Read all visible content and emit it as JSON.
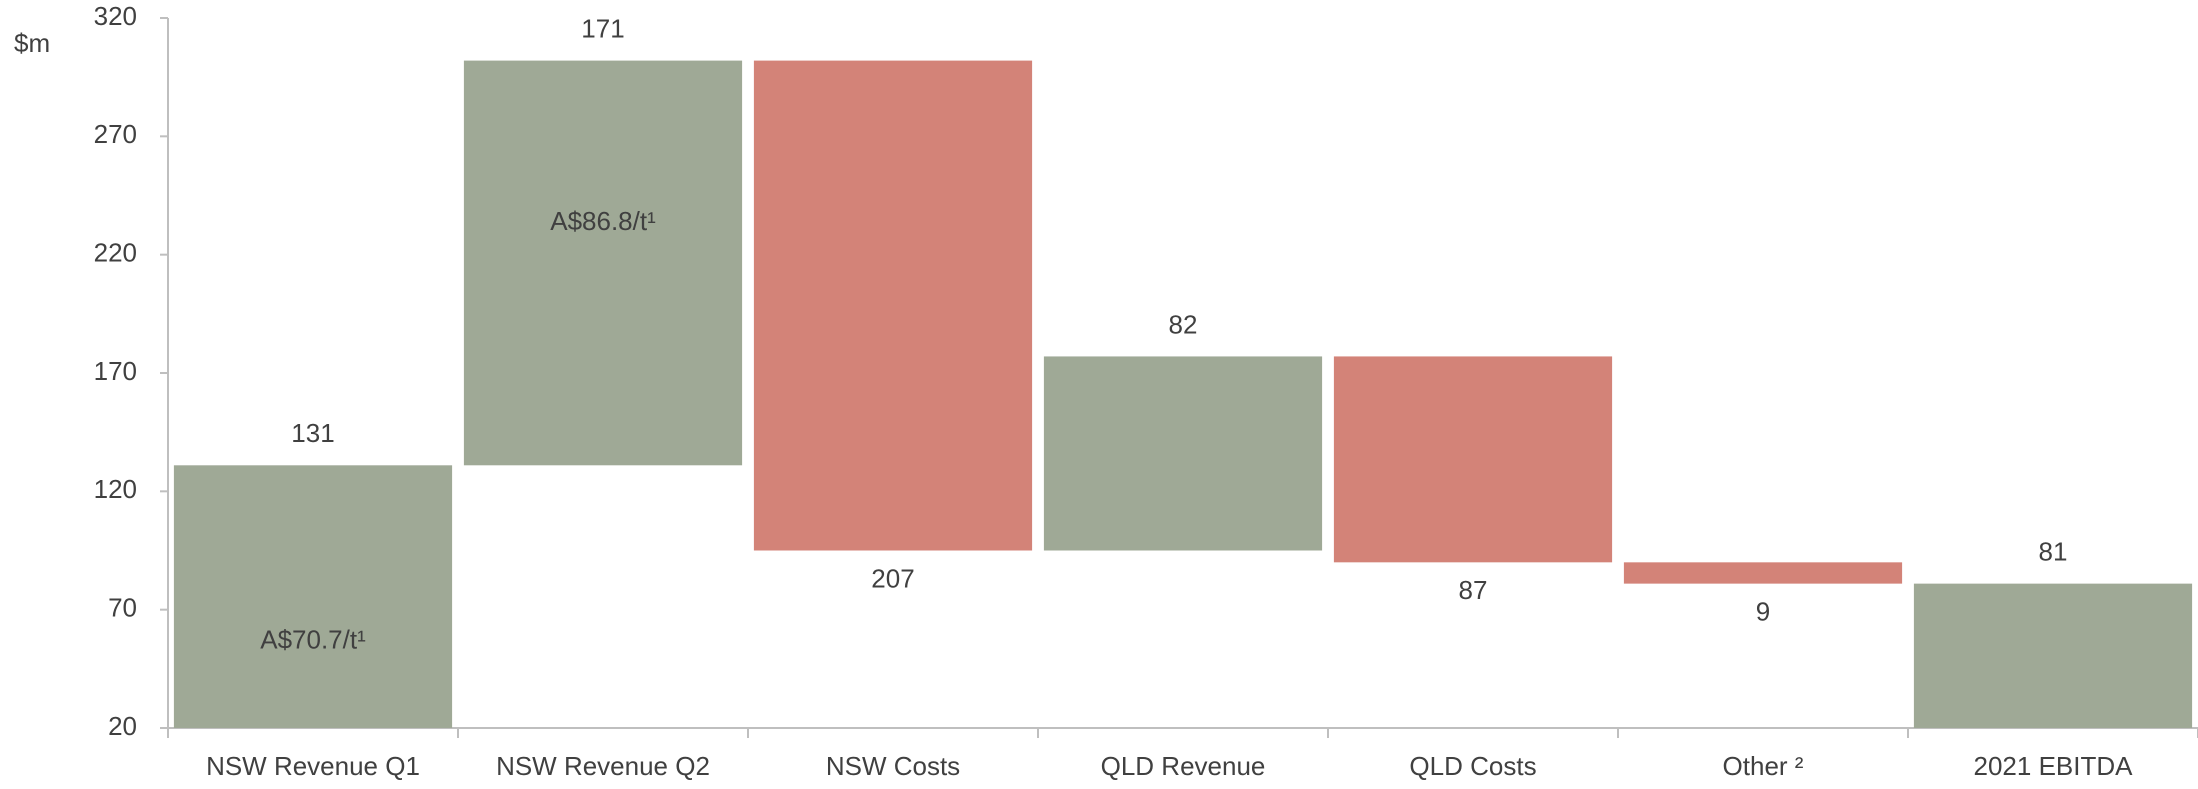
{
  "chart_data": {
    "type": "waterfall",
    "y_label": "$m",
    "categories": [
      "NSW Revenue Q1",
      "NSW Revenue Q2",
      "NSW Costs",
      "QLD Revenue",
      "QLD Costs",
      "Other ²",
      "2021 EBITDA"
    ],
    "values": [
      131,
      171,
      207,
      82,
      87,
      9,
      81
    ],
    "measure": [
      "increase",
      "increase",
      "decrease",
      "increase",
      "decrease",
      "decrease",
      "total"
    ],
    "colors": {
      "increase": "#9fa996",
      "decrease": "#d38378",
      "total": "#9fa996"
    },
    "annotations": [
      {
        "text": "A$70.7/t¹",
        "category": "NSW Revenue Q1"
      },
      {
        "text": "A$86.8/t¹",
        "category": "NSW Revenue Q2"
      }
    ],
    "ylim": [
      20,
      320
    ],
    "yticks": [
      20,
      70,
      120,
      170,
      220,
      270,
      320
    ],
    "grid": false
  }
}
